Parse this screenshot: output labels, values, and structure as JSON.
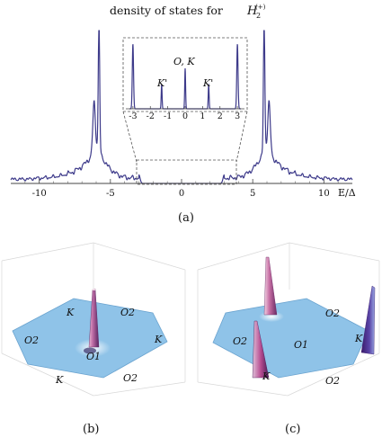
{
  "figure": {
    "panel_a": {
      "title_prefix": "density of states for",
      "title_symbol_base": "H",
      "title_symbol_sub": "2",
      "title_symbol_sup": "(+)",
      "caption": "(a)",
      "x_axis_unit": "E/Δ",
      "x_tick_labels": [
        "-10",
        "-5",
        "0",
        "5",
        "10"
      ],
      "inset": {
        "x_tick_labels": [
          "-3",
          "-2",
          "-1",
          "0",
          "1",
          "2",
          "3"
        ],
        "peak_labels": [
          "K'",
          "O, K",
          "K'"
        ]
      }
    },
    "panel_b": {
      "caption": "(b)",
      "site_labels": [
        "K",
        "O2",
        "K",
        "O2",
        "K",
        "O2",
        "O1"
      ]
    },
    "panel_c": {
      "caption": "(c)",
      "site_labels": [
        "O2",
        "K",
        "O2",
        "O1",
        "K",
        "O2"
      ]
    },
    "colors": {
      "dos_curve": "#3d3a8a",
      "hexagon_fill": "#8fc3e8",
      "hexagon_edge": "#6aa3cf",
      "spike_face": "#8a3670",
      "spike_highlight": "#e7b9d4"
    }
  },
  "chart_data": {
    "type": "line",
    "title": "density of states for H2(+)",
    "xlabel": "E/Δ",
    "ylabel": "",
    "xlim": [
      -12,
      12
    ],
    "x_ticks": [
      -10,
      -5,
      0,
      5,
      10
    ],
    "gap_region": [
      -3,
      3
    ],
    "main_peaks_at": [
      -5.8,
      5.8
    ],
    "inset": {
      "xlim": [
        -3.2,
        3.2
      ],
      "x_ticks": [
        -3,
        -2,
        -1,
        0,
        1,
        2,
        3
      ],
      "peaks": [
        {
          "x": -3.0,
          "label": ""
        },
        {
          "x": -1.35,
          "label": "K'"
        },
        {
          "x": 0.0,
          "label": "O, K"
        },
        {
          "x": 1.35,
          "label": "K'"
        },
        {
          "x": 3.0,
          "label": ""
        }
      ]
    }
  }
}
